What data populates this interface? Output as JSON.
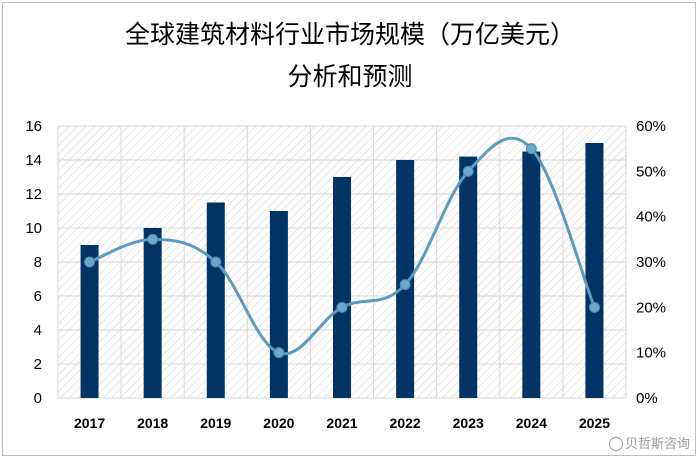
{
  "chart_data": {
    "type": "bar",
    "title_line1": "全球建筑材料行业市场规模（万亿美元）",
    "title_line2": "分析和预测",
    "categories": [
      "2017",
      "2018",
      "2019",
      "2020",
      "2021",
      "2022",
      "2023",
      "2024",
      "2025"
    ],
    "series": [
      {
        "type": "bar",
        "axis": "left",
        "values": [
          9,
          10,
          11.5,
          11,
          13,
          14,
          14.2,
          14.5,
          15
        ]
      },
      {
        "type": "line",
        "axis": "right",
        "smooth": true,
        "values": [
          30,
          35,
          30,
          10,
          20,
          25,
          50,
          55,
          20
        ]
      }
    ],
    "ylim_left": [
      0,
      16
    ],
    "yticks_left": [
      "0",
      "2",
      "4",
      "6",
      "8",
      "10",
      "12",
      "14",
      "16"
    ],
    "ylim_right": [
      0,
      60
    ],
    "yticks_right": [
      "0%",
      "10%",
      "20%",
      "30%",
      "40%",
      "50%",
      "60%"
    ],
    "grid": true,
    "colors": {
      "bar": "#003366",
      "line": "#5b9bbf",
      "marker": "#6aa8c8",
      "hatch": "#c8c8c8"
    }
  },
  "watermark": "贝哲斯咨询"
}
